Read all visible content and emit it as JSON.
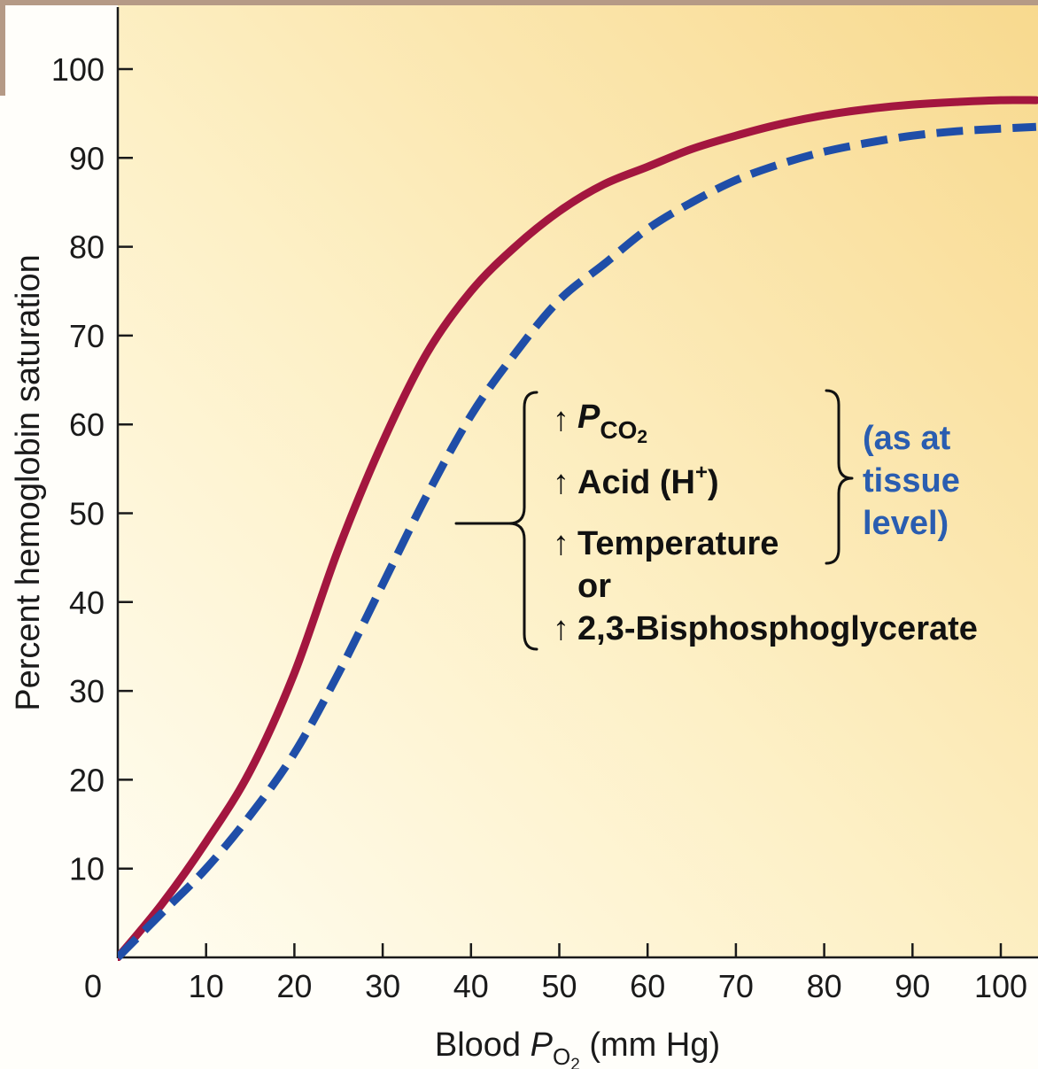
{
  "chart_data": {
    "type": "line",
    "title": "",
    "xlabel": {
      "prefix": "Blood ",
      "symbol": "P",
      "subscript": "O",
      "subsub": "2",
      "suffix": " (mm Hg)"
    },
    "ylabel": "Percent hemoglobin saturation",
    "xlim": [
      0,
      100
    ],
    "ylim": [
      0,
      100
    ],
    "x_ticks": [
      10,
      20,
      30,
      40,
      50,
      60,
      70,
      80,
      90,
      100
    ],
    "y_ticks": [
      10,
      20,
      30,
      40,
      50,
      60,
      70,
      80,
      90,
      100
    ],
    "origin_label": "0",
    "grid": false,
    "legend": "none",
    "series": [
      {
        "style": "solid",
        "color": "#a3163f",
        "x": [
          0,
          5,
          10,
          15,
          20,
          25,
          30,
          35,
          40,
          45,
          50,
          55,
          60,
          65,
          70,
          75,
          80,
          85,
          90,
          95,
          100,
          104
        ],
        "y": [
          0,
          6,
          13,
          21,
          32,
          46,
          58,
          68,
          75,
          80,
          84,
          87,
          89,
          91,
          92.5,
          93.8,
          94.8,
          95.5,
          96,
          96.3,
          96.5,
          96.5
        ]
      },
      {
        "style": "dashed",
        "color": "#1f4ea8",
        "x": [
          0,
          5,
          10,
          15,
          20,
          25,
          30,
          35,
          40,
          45,
          50,
          55,
          60,
          65,
          70,
          75,
          80,
          85,
          90,
          95,
          100,
          104
        ],
        "y": [
          0,
          5,
          10,
          16,
          23,
          32,
          42,
          52,
          61,
          68,
          74,
          78,
          82,
          85,
          87.5,
          89.3,
          90.7,
          91.7,
          92.5,
          93,
          93.3,
          93.5
        ]
      }
    ],
    "annotation": {
      "factors": [
        {
          "symbol": "P",
          "subscript": "CO",
          "subsub": "2"
        },
        {
          "text": "Acid (H",
          "sup": "+",
          "after": ")"
        },
        {
          "text": "Temperature"
        },
        {
          "text": "or",
          "connector": true
        },
        {
          "text": "2,3-Bisphosphoglycerate"
        }
      ],
      "arrow_glyph": "↑",
      "note_lines": [
        "(as at",
        "tissue",
        "level)"
      ],
      "note_color": "#2a5db0"
    }
  }
}
